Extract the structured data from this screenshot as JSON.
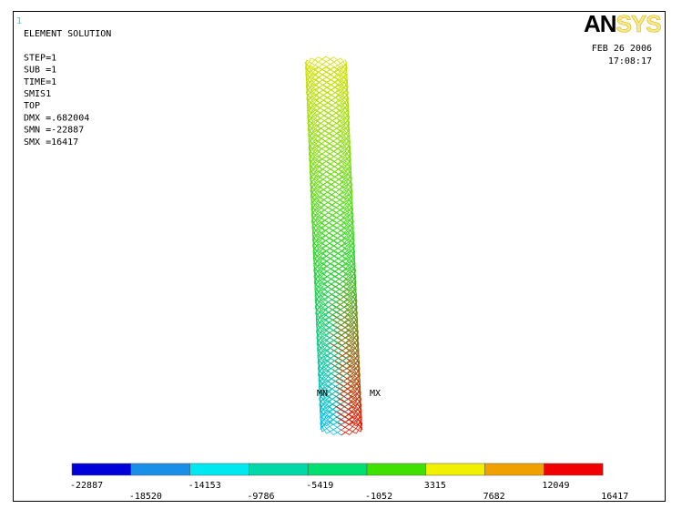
{
  "window_number": "1",
  "info_lines": [
    "ELEMENT SOLUTION",
    "",
    "STEP=1",
    "SUB =1",
    "TIME=1",
    "SMIS1",
    "TOP",
    "DMX =.682004",
    "SMN =-22887",
    "SMX =16417"
  ],
  "logo": {
    "bold": "AN",
    "light": "SYS"
  },
  "date": "FEB 26 2006",
  "time": "17:08:17",
  "markers": {
    "min": "MN",
    "max": "MX"
  },
  "legend": {
    "values": [
      -22887,
      -18520,
      -14153,
      -9786,
      -5419,
      -1052,
      3315,
      7682,
      12049,
      16417
    ],
    "colors": [
      "#0000d8",
      "#1a8fe8",
      "#00e8f0",
      "#00d8a8",
      "#00e070",
      "#40e000",
      "#f0f000",
      "#f0a000",
      "#f00000"
    ]
  }
}
